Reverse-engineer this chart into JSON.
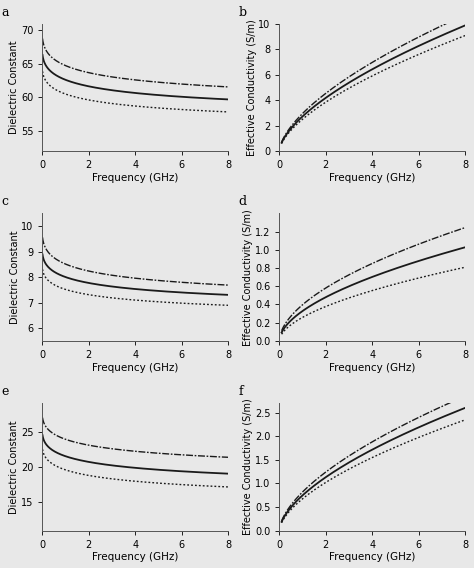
{
  "panels": [
    {
      "label": "a",
      "ylabel": "Dielectric Constant",
      "xlabel": "Frequency (GHz)",
      "ylim": [
        52,
        71
      ],
      "yticks": [
        55,
        60,
        65,
        70
      ],
      "xlim": [
        0,
        8
      ],
      "xticks": [
        0,
        2,
        4,
        6,
        8
      ],
      "type": "decreasing",
      "curves": [
        {
          "style": "dashdot",
          "a": 69.5,
          "b": 12.5,
          "tau": 0.06
        },
        {
          "style": "solid",
          "a": 67.0,
          "b": 11.5,
          "tau": 0.06
        },
        {
          "style": "dotted",
          "a": 64.5,
          "b": 10.5,
          "tau": 0.06
        }
      ]
    },
    {
      "label": "b",
      "ylabel": "Effective Conductivity (S/m)",
      "xlabel": "Frequency (GHz)",
      "ylim": [
        0,
        10
      ],
      "yticks": [
        0,
        2,
        4,
        6,
        8,
        10
      ],
      "xlim": [
        0,
        8
      ],
      "xticks": [
        0,
        2,
        4,
        6,
        8
      ],
      "type": "increasing",
      "curves": [
        {
          "style": "dashdot",
          "scale": 2.95,
          "power": 0.62
        },
        {
          "style": "solid",
          "scale": 2.72,
          "power": 0.62
        },
        {
          "style": "dotted",
          "scale": 2.5,
          "power": 0.62
        }
      ]
    },
    {
      "label": "c",
      "ylabel": "Dielectric Constant",
      "xlabel": "Frequency (GHz)",
      "ylim": [
        5.5,
        10.5
      ],
      "yticks": [
        6,
        7,
        8,
        9,
        10
      ],
      "xlim": [
        0,
        8
      ],
      "xticks": [
        0,
        2,
        4,
        6,
        8
      ],
      "type": "decreasing",
      "curves": [
        {
          "style": "dashdot",
          "a": 9.75,
          "b": 3.25,
          "tau": 0.06
        },
        {
          "style": "solid",
          "a": 9.05,
          "b": 2.75,
          "tau": 0.06
        },
        {
          "style": "dotted",
          "a": 8.45,
          "b": 2.45,
          "tau": 0.06
        }
      ]
    },
    {
      "label": "d",
      "ylabel": "Effective Conductivity (S/m)",
      "xlabel": "Frequency (GHz)",
      "ylim": [
        0,
        1.4
      ],
      "yticks": [
        0.0,
        0.2,
        0.4,
        0.6,
        0.8,
        1.0,
        1.2
      ],
      "xlim": [
        0,
        8
      ],
      "xticks": [
        0,
        2,
        4,
        6,
        8
      ],
      "type": "increasing",
      "curves": [
        {
          "style": "dashdot",
          "scale": 0.397,
          "power": 0.55
        },
        {
          "style": "solid",
          "scale": 0.328,
          "power": 0.55
        },
        {
          "style": "dotted",
          "scale": 0.258,
          "power": 0.55
        }
      ]
    },
    {
      "label": "e",
      "ylabel": "Dielectric Constant",
      "xlabel": "Frequency (GHz)",
      "ylim": [
        11,
        29
      ],
      "yticks": [
        15,
        20,
        25
      ],
      "xlim": [
        0,
        8
      ],
      "xticks": [
        0,
        2,
        4,
        6,
        8
      ],
      "type": "decreasing",
      "curves": [
        {
          "style": "dashdot",
          "a": 27.5,
          "b": 10.0,
          "tau": 0.05
        },
        {
          "style": "solid",
          "a": 25.0,
          "b": 9.7,
          "tau": 0.05
        },
        {
          "style": "dotted",
          "a": 23.0,
          "b": 9.5,
          "tau": 0.05
        }
      ]
    },
    {
      "label": "f",
      "ylabel": "Effective Conductivity (S/m)",
      "xlabel": "Frequency (GHz)",
      "ylim": [
        0,
        2.7
      ],
      "yticks": [
        0.0,
        0.5,
        1.0,
        1.5,
        2.0,
        2.5
      ],
      "xlim": [
        0,
        8
      ],
      "xticks": [
        0,
        2,
        4,
        6,
        8
      ],
      "type": "increasing",
      "curves": [
        {
          "style": "dashdot",
          "scale": 0.82,
          "power": 0.6
        },
        {
          "style": "solid",
          "scale": 0.748,
          "power": 0.6
        },
        {
          "style": "dotted",
          "scale": 0.675,
          "power": 0.6
        }
      ]
    }
  ],
  "line_color": "#1a1a1a"
}
